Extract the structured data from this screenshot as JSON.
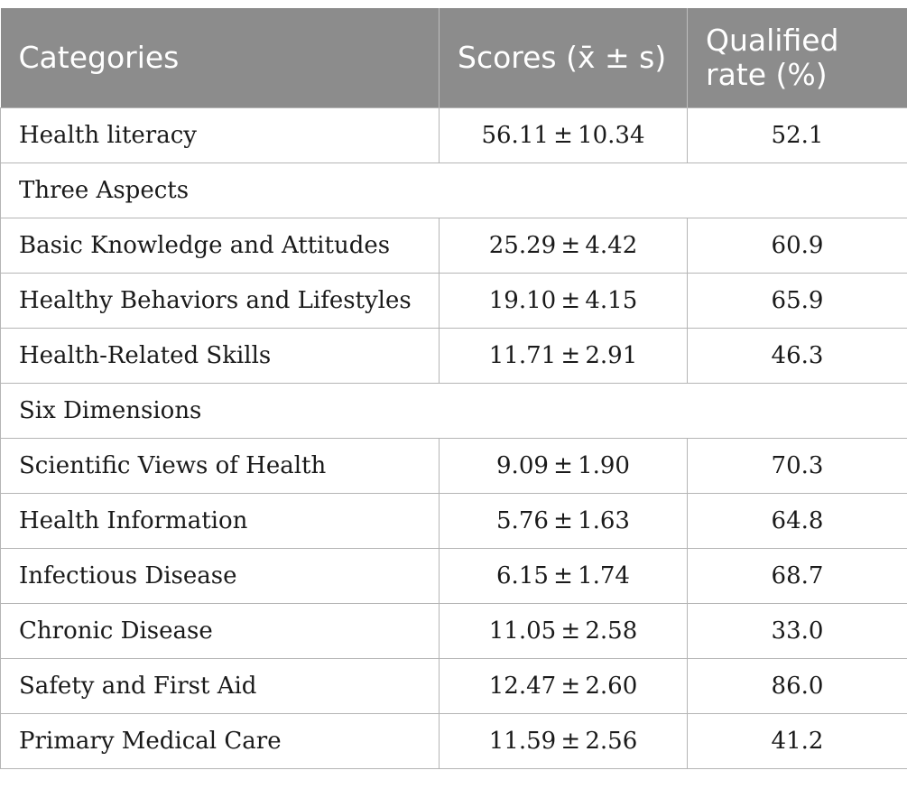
{
  "table": {
    "headers": {
      "categories": "Categories",
      "scores": "Scores (x̄ ± s)",
      "qualified_line1": "Qualified",
      "qualified_line2": "rate (%)"
    },
    "rows": [
      {
        "type": "data",
        "category": "Health literacy",
        "score": "56.11 ± 10.34",
        "rate": "52.1"
      },
      {
        "type": "section",
        "category": "Three Aspects"
      },
      {
        "type": "data",
        "category": "Basic Knowledge and Attitudes",
        "score": "25.29 ± 4.42",
        "rate": "60.9"
      },
      {
        "type": "data",
        "category": "Healthy Behaviors and Lifestyles",
        "score": "19.10 ± 4.15",
        "rate": "65.9"
      },
      {
        "type": "data",
        "category": "Health-Related Skills",
        "score": "11.71 ± 2.91",
        "rate": "46.3"
      },
      {
        "type": "section",
        "category": "Six Dimensions"
      },
      {
        "type": "data",
        "category": "Scientific Views of Health",
        "score": "9.09 ± 1.90",
        "rate": "70.3"
      },
      {
        "type": "data",
        "category": "Health Information",
        "score": "5.76 ± 1.63",
        "rate": "64.8"
      },
      {
        "type": "data",
        "category": "Infectious Disease",
        "score": "6.15 ± 1.74",
        "rate": "68.7"
      },
      {
        "type": "data",
        "category": "Chronic Disease",
        "score": "11.05 ± 2.58",
        "rate": "33.0"
      },
      {
        "type": "data",
        "category": "Safety and First Aid",
        "score": "12.47 ± 2.60",
        "rate": "86.0"
      },
      {
        "type": "data",
        "category": "Primary Medical Care",
        "score": "11.59 ± 2.56",
        "rate": "41.2"
      }
    ]
  }
}
